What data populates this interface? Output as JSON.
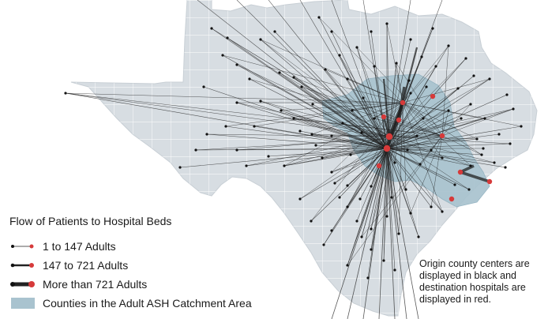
{
  "colors": {
    "state_fill": "#d7dde2",
    "county_border": "#ffffff",
    "catchment_fill": "#a9c3cf",
    "flow_line": "#222222",
    "origin_dot": "#111111",
    "hospital_dot": "#d63a3a"
  },
  "legend": {
    "title": "Flow of Patients to Hospital Beds",
    "items": [
      {
        "label": "1 to 147 Adults",
        "weight": "thin"
      },
      {
        "label": "147 to 721 Adults",
        "weight": "medium"
      },
      {
        "label": "More than 721 Adults",
        "weight": "thick"
      },
      {
        "label": "Counties in the Adult ASH Catchment Area",
        "weight": "area"
      }
    ]
  },
  "note": "Origin county centers are displayed in black and destination hospitals are displayed in red."
}
